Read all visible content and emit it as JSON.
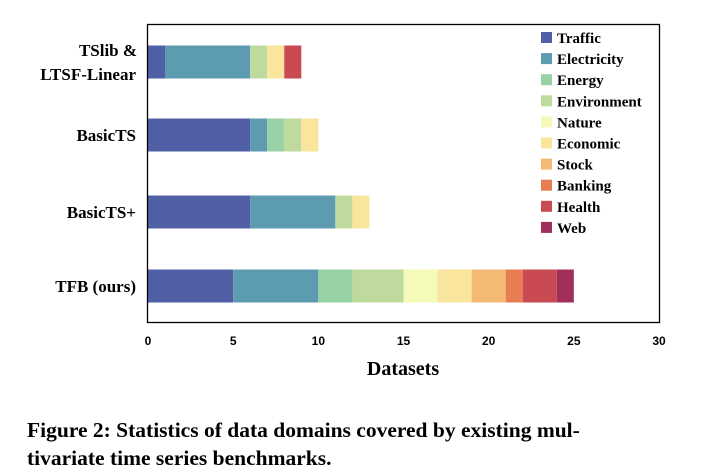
{
  "chart_data": {
    "type": "bar",
    "orientation": "horizontal",
    "stacked": true,
    "categories": [
      "TSlib & LTSF-Linear",
      "BasicTS",
      "BasicTS+",
      "TFB (ours)"
    ],
    "category_lines": [
      [
        "TSlib &",
        "LTSF-Linear"
      ],
      [
        "BasicTS"
      ],
      [
        "BasicTS+"
      ],
      [
        "TFB (ours)"
      ]
    ],
    "series": [
      {
        "name": "Traffic",
        "color": "#5160a6",
        "values": [
          1,
          6,
          6,
          5
        ]
      },
      {
        "name": "Electricity",
        "color": "#5c9bb0",
        "values": [
          5,
          1,
          5,
          5
        ]
      },
      {
        "name": "Energy",
        "color": "#99d1a7",
        "values": [
          0,
          1,
          0,
          2
        ]
      },
      {
        "name": "Environment",
        "color": "#bedb9d",
        "values": [
          1,
          1,
          1,
          3
        ]
      },
      {
        "name": "Nature",
        "color": "#f5fab8",
        "values": [
          0,
          0,
          0,
          2
        ]
      },
      {
        "name": "Economic",
        "color": "#fae59d",
        "values": [
          1,
          1,
          1,
          2
        ]
      },
      {
        "name": "Stock",
        "color": "#f3b975",
        "values": [
          0,
          0,
          0,
          2
        ]
      },
      {
        "name": "Banking",
        "color": "#e87c53",
        "values": [
          0,
          0,
          0,
          1
        ]
      },
      {
        "name": "Health",
        "color": "#c94a50",
        "values": [
          1,
          0,
          0,
          2
        ]
      },
      {
        "name": "Web",
        "color": "#a02f5c",
        "values": [
          0,
          0,
          0,
          1
        ]
      }
    ],
    "xlabel": "Datasets",
    "ylabel": "",
    "xlim": [
      0,
      30
    ],
    "xticks": [
      0,
      5,
      10,
      15,
      20,
      25,
      30
    ],
    "grid": false,
    "legend_position": "top-right"
  },
  "caption": {
    "line1": "Figure 2: Statistics of data domains covered by existing mul-",
    "line2": "tivariate time series benchmarks."
  }
}
